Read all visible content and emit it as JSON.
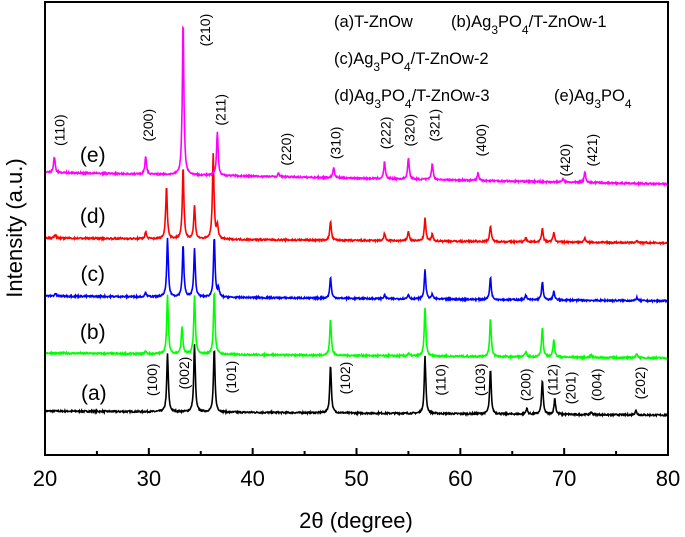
{
  "chart_data": {
    "type": "line",
    "xlabel": "2θ (degree)",
    "ylabel": "Intensity (a.u.)",
    "xlim": [
      20,
      80
    ],
    "ylim": [
      0,
      100
    ],
    "xticks": [
      20,
      30,
      40,
      50,
      60,
      70,
      80
    ],
    "grid": false,
    "legend": {
      "placement": "top-right",
      "entries": [
        "(a)T-ZnOw",
        "(b)Ag3PO4/T-ZnOw-1",
        "(c)Ag3PO4/T-ZnOw-2",
        "(d)Ag3PO4/T-ZnOw-3",
        "(e)Ag3PO4"
      ]
    },
    "series": [
      {
        "name": "(a)",
        "color": "#000000",
        "baseline": [
          9.7,
          8.8
        ],
        "label_pos": [
          24.7,
          13.7
        ],
        "peaks": [
          [
            31.8,
            12.8
          ],
          [
            34.4,
            14.8
          ],
          [
            36.3,
            13.9
          ],
          [
            47.5,
            10.6
          ],
          [
            56.6,
            12.6
          ],
          [
            62.9,
            9.7
          ],
          [
            66.4,
            1.3
          ],
          [
            67.9,
            7.5
          ],
          [
            69.1,
            3.5
          ],
          [
            72.6,
            0.6
          ],
          [
            76.9,
            1.0
          ]
        ]
      },
      {
        "name": "(b)",
        "color": "#00ff00",
        "baseline": [
          22.5,
          21.4
        ],
        "label_pos": [
          24.6,
          27.2
        ],
        "peaks": [
          [
            29.7,
            0.6
          ],
          [
            31.8,
            13.0
          ],
          [
            33.2,
            6.0
          ],
          [
            34.4,
            13.0
          ],
          [
            36.3,
            14.0
          ],
          [
            47.5,
            8.0
          ],
          [
            55.0,
            0.6
          ],
          [
            56.6,
            10.8
          ],
          [
            62.9,
            8.4
          ],
          [
            66.3,
            1.2
          ],
          [
            67.9,
            6.6
          ],
          [
            69.0,
            4.0
          ],
          [
            72.6,
            0.5
          ],
          [
            77.0,
            1.0
          ]
        ]
      },
      {
        "name": "(c)",
        "color": "#0000ff",
        "baseline": [
          35.1,
          34.0
        ],
        "label_pos": [
          24.6,
          40.0
        ],
        "peaks": [
          [
            21.0,
            0.6
          ],
          [
            29.7,
            1.0
          ],
          [
            31.8,
            12.8
          ],
          [
            33.3,
            11.5
          ],
          [
            34.4,
            10.6
          ],
          [
            36.3,
            13.2
          ],
          [
            36.7,
            2.0
          ],
          [
            47.5,
            4.6
          ],
          [
            52.7,
            0.8
          ],
          [
            55.0,
            1.0
          ],
          [
            56.6,
            6.4
          ],
          [
            57.3,
            1.0
          ],
          [
            62.9,
            4.9
          ],
          [
            66.3,
            1.0
          ],
          [
            67.9,
            4.0
          ],
          [
            69.0,
            2.0
          ],
          [
            77.0,
            0.7
          ]
        ]
      },
      {
        "name": "(d)",
        "color": "#ff0000",
        "baseline": [
          47.9,
          46.8
        ],
        "label_pos": [
          24.6,
          52.8
        ],
        "peaks": [
          [
            21.0,
            0.8
          ],
          [
            29.7,
            1.5
          ],
          [
            31.7,
            11.7
          ],
          [
            33.3,
            15.7
          ],
          [
            34.4,
            7.3
          ],
          [
            36.2,
            19.0
          ],
          [
            36.6,
            3.0
          ],
          [
            47.5,
            4.2
          ],
          [
            52.7,
            1.6
          ],
          [
            55.0,
            2.2
          ],
          [
            56.6,
            5.0
          ],
          [
            57.3,
            1.5
          ],
          [
            62.9,
            3.5
          ],
          [
            66.3,
            1.0
          ],
          [
            67.9,
            3.1
          ],
          [
            69.0,
            2.2
          ],
          [
            72.0,
            1.0
          ],
          [
            77.0,
            0.5
          ]
        ]
      },
      {
        "name": "(e)",
        "color": "#ff00ff",
        "baseline": [
          62.4,
          59.8
        ],
        "label_pos": [
          24.6,
          66.2
        ],
        "peaks": [
          [
            20.9,
            3.5
          ],
          [
            29.7,
            4.0
          ],
          [
            33.3,
            34.0
          ],
          [
            36.6,
            9.5
          ],
          [
            42.5,
            0.8
          ],
          [
            47.8,
            2.2
          ],
          [
            52.7,
            3.7
          ],
          [
            55.0,
            4.8
          ],
          [
            57.3,
            3.7
          ],
          [
            61.7,
            1.6
          ],
          [
            69.9,
            0.8
          ],
          [
            72.0,
            2.4
          ]
        ]
      }
    ],
    "annotations": [
      {
        "text": "(110)",
        "x": 21.4,
        "y": 71.7
      },
      {
        "text": "(200)",
        "x": 29.9,
        "y": 72.8
      },
      {
        "text": "(210)",
        "x": 35.4,
        "y": 93.8
      },
      {
        "text": "(211)",
        "x": 36.9,
        "y": 76.2
      },
      {
        "text": "(220)",
        "x": 43.2,
        "y": 67.5
      },
      {
        "text": "(310)",
        "x": 48.0,
        "y": 68.9
      },
      {
        "text": "(222)",
        "x": 52.8,
        "y": 71.1
      },
      {
        "text": "(320)",
        "x": 55.1,
        "y": 71.7
      },
      {
        "text": "(321)",
        "x": 57.5,
        "y": 72.8
      },
      {
        "text": "(400)",
        "x": 62.0,
        "y": 69.5
      },
      {
        "text": "(420)",
        "x": 70.1,
        "y": 65.1
      },
      {
        "text": "(421)",
        "x": 72.7,
        "y": 67.3
      },
      {
        "text": "(100)",
        "x": 30.3,
        "y": 16.6
      },
      {
        "text": "(002)",
        "x": 33.4,
        "y": 18.1
      },
      {
        "text": "(101)",
        "x": 37.9,
        "y": 17.2
      },
      {
        "text": "(102)",
        "x": 48.9,
        "y": 17.0
      },
      {
        "text": "(110)",
        "x": 58.1,
        "y": 16.6
      },
      {
        "text": "(103)",
        "x": 61.9,
        "y": 16.6
      },
      {
        "text": "(200)",
        "x": 66.3,
        "y": 15.5
      },
      {
        "text": "(112)",
        "x": 68.9,
        "y": 16.6
      },
      {
        "text": "(201)",
        "x": 70.6,
        "y": 14.8
      },
      {
        "text": "(004)",
        "x": 73.1,
        "y": 15.5
      },
      {
        "text": "(202)",
        "x": 77.3,
        "y": 15.9
      }
    ]
  }
}
